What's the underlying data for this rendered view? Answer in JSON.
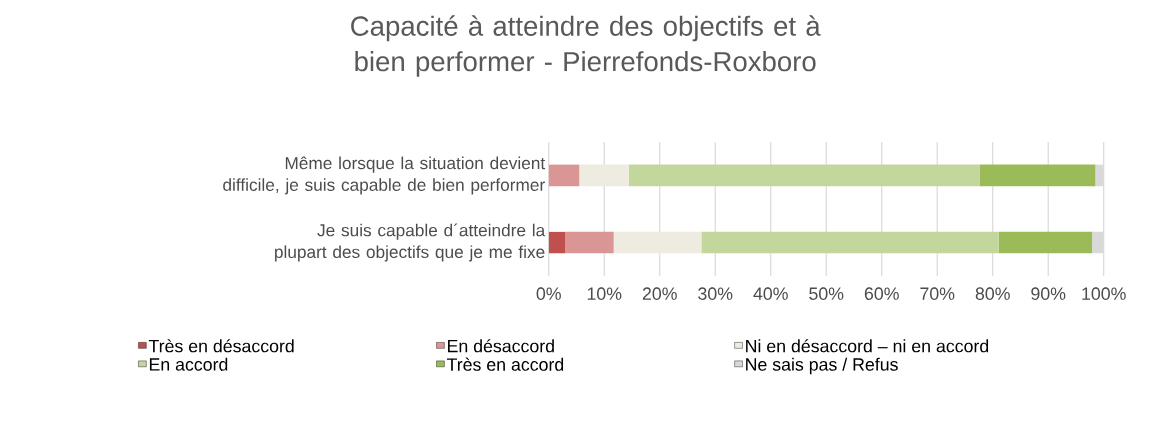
{
  "chart_data": {
    "type": "bar",
    "orientation": "horizontal",
    "stacked": true,
    "title": "Capacité à atteindre des objectifs et à bien performer - Pierrefonds-Roxboro",
    "categories": [
      "Même lorsque la situation devient difficile, je suis capable de bien performer",
      "Je suis capable d´atteindre la plupart des objectifs que je me fixe"
    ],
    "series": [
      {
        "name": "Très en désaccord",
        "color": "#c0504d",
        "values": [
          0,
          3.0
        ]
      },
      {
        "name": "En désaccord",
        "color": "#d99694",
        "values": [
          5.5,
          8.7
        ]
      },
      {
        "name": "Ni en désaccord – ni en accord",
        "color": "#eeece1",
        "values": [
          8.9,
          15.8
        ]
      },
      {
        "name": "En accord",
        "color": "#c3d69b",
        "values": [
          63.3,
          53.6
        ]
      },
      {
        "name": "Très en accord",
        "color": "#9bbb59",
        "values": [
          20.8,
          16.8
        ]
      },
      {
        "name": "Ne sais pas / Refus",
        "color": "#d9d9d9",
        "values": [
          1.5,
          2.1
        ]
      }
    ],
    "xlim": [
      0,
      100
    ],
    "xticks": [
      {
        "value": 0,
        "label": "0%"
      },
      {
        "value": 10,
        "label": "10%"
      },
      {
        "value": 20,
        "label": "20%"
      },
      {
        "value": 30,
        "label": "30%"
      },
      {
        "value": 40,
        "label": "40%"
      },
      {
        "value": 50,
        "label": "50%"
      },
      {
        "value": 60,
        "label": "60%"
      },
      {
        "value": 70,
        "label": "70%"
      },
      {
        "value": 80,
        "label": "80%"
      },
      {
        "value": 90,
        "label": "90%"
      },
      {
        "value": 100,
        "label": "100%"
      }
    ],
    "grid": "x",
    "legend": "bottom"
  }
}
